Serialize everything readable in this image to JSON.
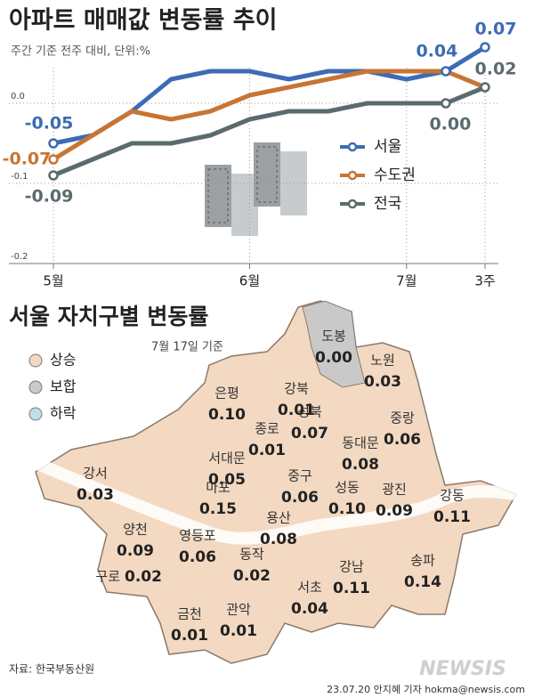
{
  "chart_data": {
    "type": "line",
    "title": "아파트 매매값 변동률 추이",
    "subtitle": "주간 기준 전주 대비, 단위:%",
    "categories": [
      "5월",
      null,
      null,
      null,
      null,
      "6월",
      null,
      null,
      null,
      "7월",
      null,
      "3주"
    ],
    "series": [
      {
        "name": "서울",
        "color": "#3d6bb5",
        "values": [
          -0.05,
          -0.04,
          -0.01,
          0.03,
          0.04,
          0.04,
          0.03,
          0.04,
          0.04,
          0.03,
          0.04,
          0.07
        ],
        "value_labels": [
          "-0.05",
          null,
          null,
          null,
          null,
          null,
          null,
          null,
          null,
          null,
          "0.04",
          "0.07"
        ]
      },
      {
        "name": "수도권",
        "color": "#c87533",
        "values": [
          -0.07,
          -0.04,
          -0.01,
          -0.02,
          -0.01,
          0.01,
          0.02,
          0.03,
          0.04,
          0.04,
          0.04,
          0.02
        ],
        "value_labels": [
          "-0.07",
          null,
          null,
          null,
          null,
          null,
          null,
          null,
          null,
          null,
          null,
          null
        ]
      },
      {
        "name": "전국",
        "color": "#5a6b6e",
        "values": [
          -0.09,
          -0.07,
          -0.05,
          -0.05,
          -0.04,
          -0.02,
          -0.01,
          -0.01,
          0.0,
          0.0,
          0.0,
          0.02
        ],
        "value_labels": [
          "-0.09",
          null,
          null,
          null,
          null,
          null,
          null,
          null,
          null,
          null,
          "0.00",
          "0.02"
        ]
      }
    ],
    "ylim": [
      -0.2,
      0.1
    ],
    "yticks": [
      {
        "value": 0,
        "label": "0.0"
      },
      {
        "value": -0.1,
        "label": "-0.1"
      },
      {
        "value": -0.2,
        "label": "-0.2"
      }
    ],
    "grid": true,
    "legend": "right"
  },
  "map": {
    "title": "서울 자치구별 변동률",
    "date": "7월 17일 기준",
    "legend": [
      {
        "label": "상승",
        "color": "#f3d9c2"
      },
      {
        "label": "보합",
        "color": "#c9c9c9"
      },
      {
        "label": "하락",
        "color": "#bfe0ea"
      }
    ],
    "districts": [
      {
        "name": "도봉",
        "value": "0.00"
      },
      {
        "name": "노원",
        "value": "0.03"
      },
      {
        "name": "강북",
        "value": "0.01"
      },
      {
        "name": "은평",
        "value": "0.10"
      },
      {
        "name": "성북",
        "value": "0.07"
      },
      {
        "name": "중랑",
        "value": "0.06"
      },
      {
        "name": "종로",
        "value": "0.01"
      },
      {
        "name": "동대문",
        "value": "0.08"
      },
      {
        "name": "서대문",
        "value": "0.05"
      },
      {
        "name": "강서",
        "value": "0.03"
      },
      {
        "name": "중구",
        "value": "0.06"
      },
      {
        "name": "마포",
        "value": "0.15"
      },
      {
        "name": "성동",
        "value": "0.10"
      },
      {
        "name": "광진",
        "value": "0.09"
      },
      {
        "name": "강동",
        "value": "0.11"
      },
      {
        "name": "용산",
        "value": "0.08"
      },
      {
        "name": "양천",
        "value": "0.09"
      },
      {
        "name": "영등포",
        "value": "0.06"
      },
      {
        "name": "동작",
        "value": "0.02"
      },
      {
        "name": "송파",
        "value": "0.14"
      },
      {
        "name": "구로",
        "value": "0.02"
      },
      {
        "name": "강남",
        "value": "0.11"
      },
      {
        "name": "서초",
        "value": "0.04"
      },
      {
        "name": "관악",
        "value": "0.01"
      },
      {
        "name": "금천",
        "value": "0.01"
      }
    ]
  },
  "source": "자료: 한국부동산원",
  "credit": "23.07.20 안지혜 기자 hokma@newsis.com",
  "watermark": "NEWSIS"
}
